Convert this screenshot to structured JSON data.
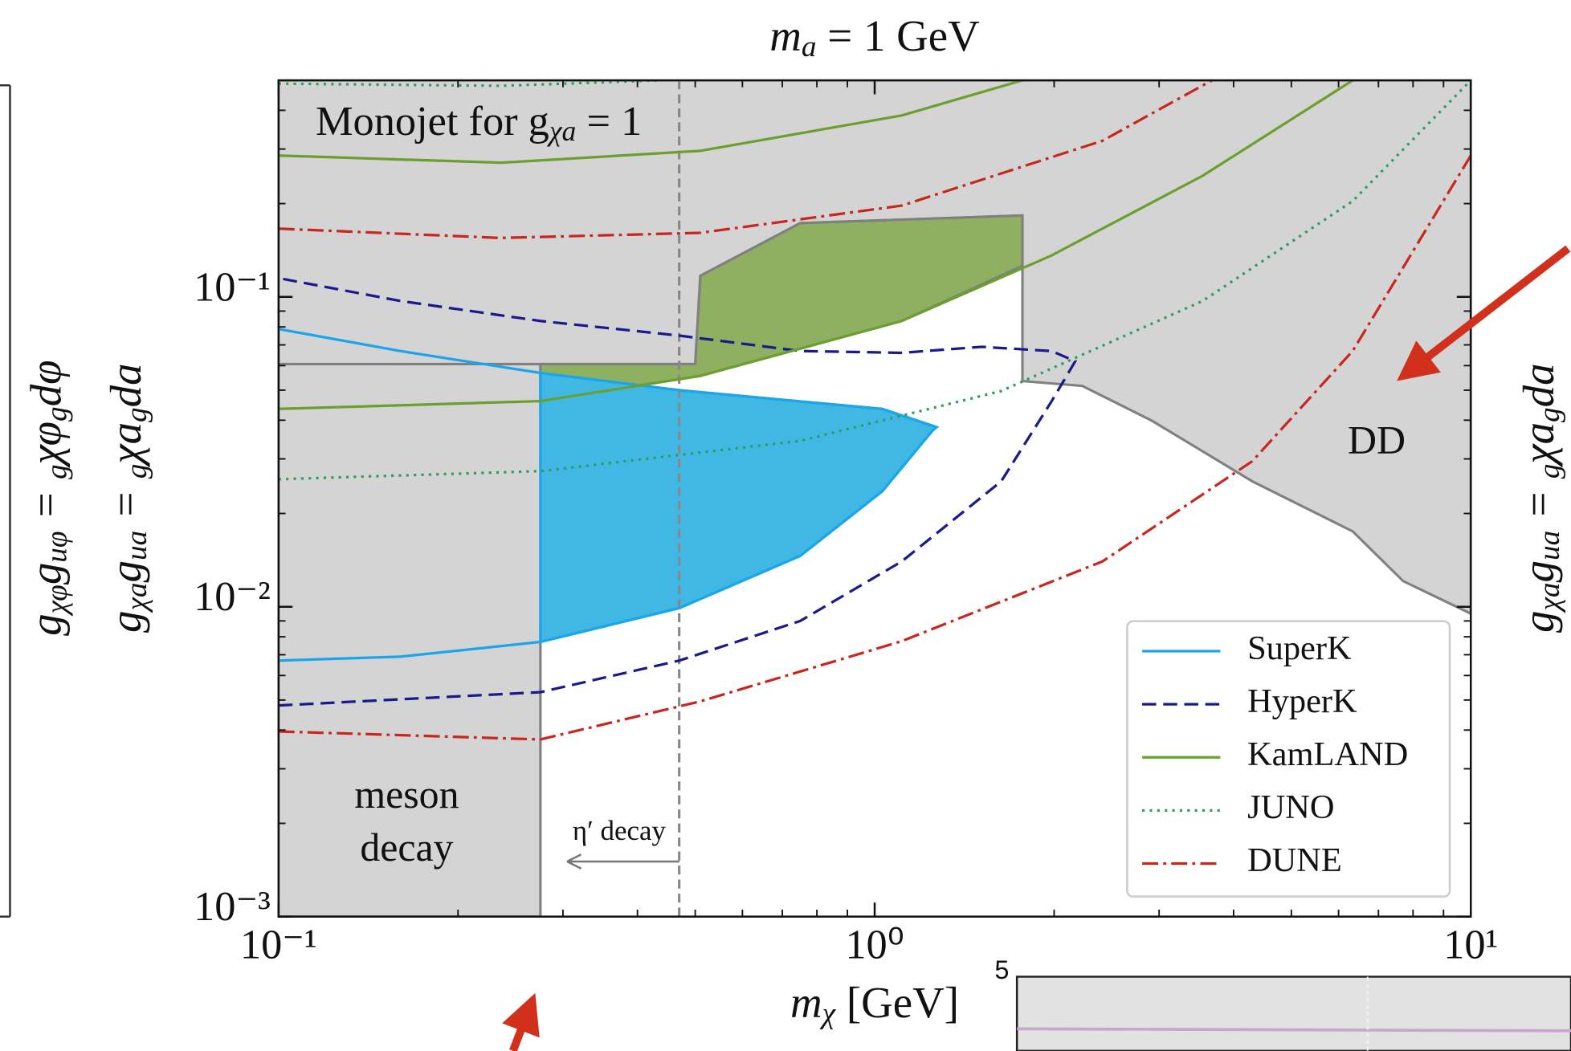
{
  "chart_data": {
    "type": "line",
    "title": [
      "m",
      "a",
      " = 1 GeV"
    ],
    "xlabel": [
      "m",
      "χ",
      " [GeV]"
    ],
    "ylabel": [
      "g",
      "χa",
      "g",
      "ua",
      " = ",
      "g",
      "χa",
      "g",
      "da"
    ],
    "left_ylabel": [
      "g",
      "χφ",
      "g",
      "uφ",
      " = ",
      "g",
      "χφ",
      "g",
      "dφ"
    ],
    "right_ylabel": [
      "g",
      "χa",
      "g",
      "ua",
      " = ",
      "g",
      "χa",
      "g",
      "da"
    ],
    "inset_tick": "5",
    "annotation_monojet": [
      "Monojet for g",
      "χa",
      " = 1"
    ],
    "annotation_meson": [
      "meson",
      "decay"
    ],
    "annotation_eta": "η′ decay",
    "annotation_dd": "DD",
    "xscale": "log",
    "yscale": "log",
    "xlim": [
      0.1,
      10
    ],
    "ylim": [
      0.001,
      0.5
    ],
    "xticks": [
      {
        "value": 0.1,
        "label": "10⁻¹"
      },
      {
        "value": 1,
        "label": "10⁰"
      },
      {
        "value": 10,
        "label": "10¹"
      }
    ],
    "yticks": [
      {
        "value": 0.001,
        "label": "10⁻³"
      },
      {
        "value": 0.01,
        "label": "10⁻²"
      },
      {
        "value": 0.1,
        "label": "10⁻¹"
      }
    ],
    "xminorticks": [
      0.2,
      0.3,
      0.4,
      0.5,
      0.6,
      0.7,
      0.8,
      0.9,
      2,
      3,
      4,
      5,
      6,
      7,
      8,
      9
    ],
    "yminorticks": [
      0.002,
      0.003,
      0.004,
      0.005,
      0.006,
      0.007,
      0.008,
      0.009,
      0.02,
      0.03,
      0.04,
      0.05,
      0.06,
      0.07,
      0.08,
      0.09,
      0.2,
      0.3,
      0.4,
      0.5
    ],
    "vlines": [
      0.47
    ],
    "legend": "lower right",
    "regions": [
      {
        "color": "#d4d4d4",
        "edge": "#808080",
        "x": [
          0.1,
          0.275,
          0.275,
          0.1
        ],
        "values": [
          0.001,
          0.001,
          0.5,
          0.5
        ]
      },
      {
        "color": "#d4d4d4",
        "edge": "#808080",
        "x": [
          0.1,
          0.5,
          0.51,
          0.75,
          1.77,
          1.77,
          2.23,
          2.92,
          4.3,
          6.34,
          7.7,
          10,
          10,
          0.1
        ],
        "values": [
          0.0607,
          0.0607,
          0.117,
          0.173,
          0.183,
          0.0535,
          0.0516,
          0.0398,
          0.0254,
          0.0175,
          0.0121,
          0.0095,
          0.5,
          0.5
        ]
      },
      {
        "color": "#8fb060",
        "edge": "#808080",
        "x": [
          0.275,
          0.5,
          0.51,
          0.75,
          1.77,
          1.77,
          1.11,
          0.51,
          0.275
        ],
        "values": [
          0.0607,
          0.0607,
          0.117,
          0.173,
          0.183,
          0.126,
          0.0836,
          0.0556,
          0.0461
        ]
      },
      {
        "color": "#41b8e4",
        "edge": "#1aa6e8",
        "x": [
          0.275,
          0.47,
          0.75,
          1.03,
          1.25,
          1.27,
          1.03,
          0.75,
          0.47,
          0.275
        ],
        "values": [
          0.0077,
          0.0099,
          0.0146,
          0.0236,
          0.037,
          0.038,
          0.0435,
          0.046,
          0.05,
          0.0568
        ]
      }
    ],
    "series": [
      {
        "name": "SuperK",
        "color": "#1aa6e8",
        "style": "solid",
        "x": [
          0.1,
          0.16,
          0.275,
          0.47,
          0.75,
          1.03,
          1.25,
          1.27,
          1.03,
          0.75,
          0.47,
          0.275,
          0.16,
          0.1
        ],
        "values": [
          0.0067,
          0.0069,
          0.0077,
          0.0099,
          0.0146,
          0.0236,
          0.037,
          0.038,
          0.0435,
          0.046,
          0.05,
          0.0568,
          0.0669,
          0.0788
        ]
      },
      {
        "name": "HyperK",
        "color": "#1a1a8c",
        "style": "dashed",
        "x": [
          0.1,
          0.275,
          0.47,
          0.75,
          1.11,
          1.63,
          1.98,
          2.17,
          1.98,
          1.51,
          1.11,
          0.75,
          0.47,
          0.275,
          0.16,
          0.1
        ],
        "values": [
          0.0048,
          0.0053,
          0.0067,
          0.009,
          0.014,
          0.0254,
          0.046,
          0.062,
          0.0669,
          0.069,
          0.066,
          0.0669,
          0.075,
          0.0836,
          0.097,
          0.115
        ]
      },
      {
        "name": "KamLAND",
        "color": "#6b9f2e",
        "style": "solid",
        "x": [
          0.1,
          0.275,
          0.51,
          1.11,
          1.98,
          3.55,
          6.34,
          null,
          0.1,
          0.236,
          0.51,
          1.11,
          1.77
        ],
        "values": [
          0.0435,
          0.0461,
          0.0556,
          0.0836,
          0.136,
          0.246,
          0.5,
          null,
          0.286,
          0.271,
          0.296,
          0.385,
          0.5
        ]
      },
      {
        "name": "JUNO",
        "color": "#2e9e5e",
        "style": "dotted",
        "x": [
          0.1,
          0.275,
          0.75,
          1.63,
          3.55,
          6.34,
          10,
          null,
          0.1,
          0.236,
          0.44
        ],
        "values": [
          0.0258,
          0.0274,
          0.0343,
          0.0497,
          0.097,
          0.204,
          0.5,
          null,
          0.488,
          0.48,
          0.5
        ]
      },
      {
        "name": "DUNE",
        "color": "#c8261f",
        "style": "dashdot",
        "x": [
          0.1,
          0.275,
          0.51,
          1.11,
          2.41,
          4.3,
          6.34,
          10,
          null,
          0.1,
          0.236,
          0.51,
          1.11,
          2.41,
          3.68
        ],
        "values": [
          0.00396,
          0.00373,
          0.00495,
          0.00774,
          0.014,
          0.0295,
          0.067,
          0.286,
          null,
          0.166,
          0.155,
          0.161,
          0.197,
          0.319,
          0.5
        ]
      }
    ]
  }
}
